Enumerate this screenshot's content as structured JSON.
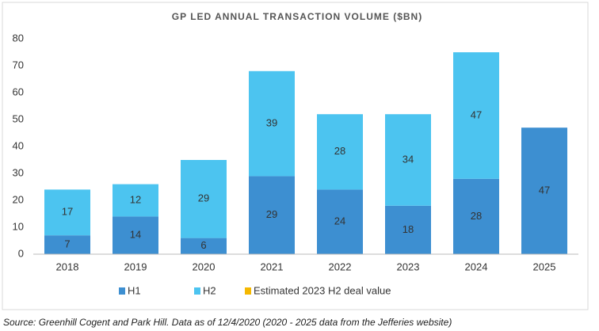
{
  "chart_data": {
    "type": "stacked_bar",
    "title": "GP LED ANNUAL TRANSACTION VOLUME ($BN)",
    "categories": [
      "2018",
      "2019",
      "2020",
      "2021",
      "2022",
      "2023",
      "2024",
      "2025"
    ],
    "series": [
      {
        "name": "H1",
        "color": "#3d8fd1",
        "values": [
          7,
          14,
          6,
          29,
          24,
          18,
          28,
          47
        ]
      },
      {
        "name": "H2",
        "color": "#4cc4f0",
        "values": [
          17,
          12,
          29,
          39,
          28,
          34,
          47,
          null
        ]
      },
      {
        "name": "Estimated 2023 H2 deal value",
        "color": "#f5b800",
        "values": [
          null,
          null,
          null,
          null,
          null,
          null,
          null,
          null
        ]
      }
    ],
    "ylim": [
      0,
      80
    ],
    "yticks": [
      0,
      10,
      20,
      30,
      40,
      50,
      60,
      70,
      80
    ],
    "grid": false,
    "legend": "bottom",
    "source": "Source: Greenhill Cogent and Park Hill. Data as of 12/4/2020 (2020 - 2025 data from the Jefferies website)"
  }
}
